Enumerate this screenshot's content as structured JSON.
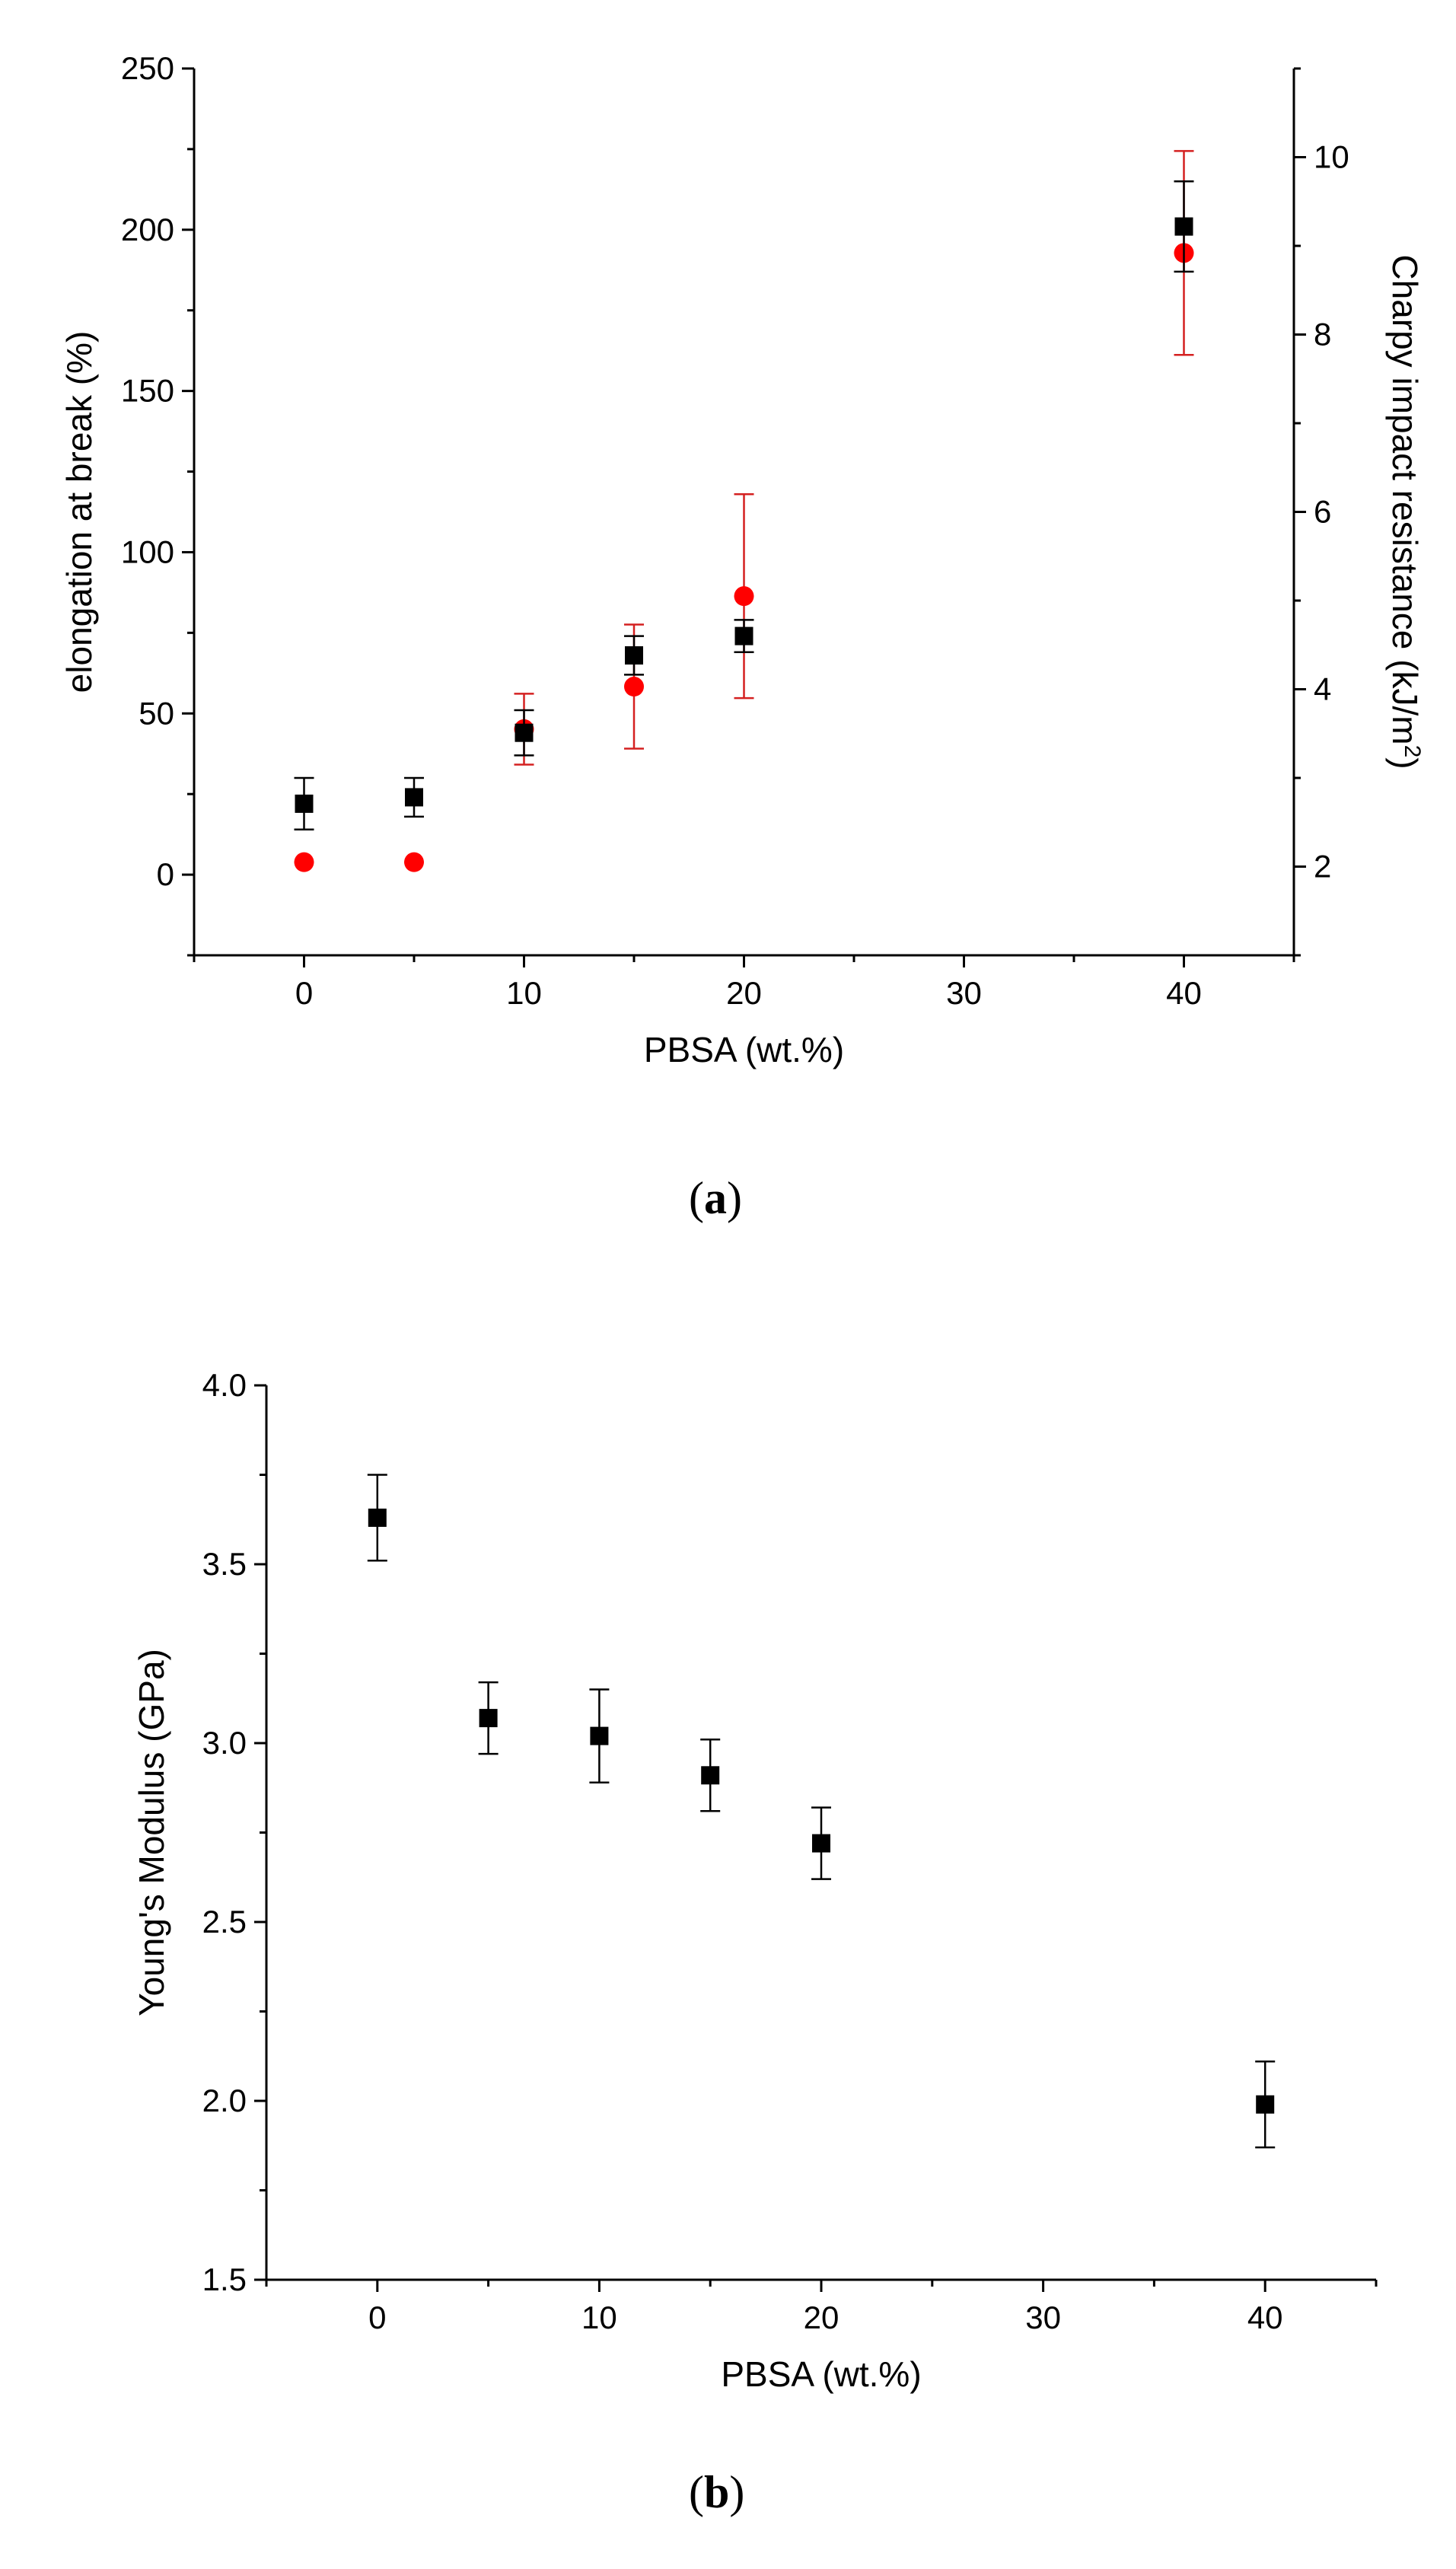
{
  "colors": {
    "series_black": "#000000",
    "series_red": "#ff0000",
    "errorbar_red": "#d42020",
    "axis": "#000000"
  },
  "chart_data": [
    {
      "panel": "a",
      "caption_label": "a",
      "type": "scatter",
      "xlabel": "PBSA (wt.%)",
      "ylabel": "elongation at break (%)",
      "y2label": "Charpy impact resistance (kJ/m",
      "y2label_sup": "2",
      "y2label_suffix": ")",
      "xlim": [
        -5,
        45
      ],
      "ylim": [
        -25,
        250
      ],
      "y2lim": [
        1,
        11
      ],
      "xticks": [
        0,
        10,
        20,
        30,
        40
      ],
      "yticks": [
        0,
        50,
        100,
        150,
        200,
        250
      ],
      "y2ticks": [
        2,
        4,
        6,
        8,
        10
      ],
      "series": [
        {
          "name": "elongation at break",
          "marker": "square",
          "axis": "left",
          "x": [
            0,
            5,
            10,
            15,
            20,
            40
          ],
          "y": [
            22,
            24,
            44,
            68,
            74,
            201
          ],
          "err": [
            8,
            6,
            7,
            6,
            5,
            14
          ]
        },
        {
          "name": "Charpy impact resistance",
          "marker": "circle",
          "axis": "right",
          "x": [
            0,
            5,
            10,
            15,
            20,
            40
          ],
          "y": [
            2.05,
            2.05,
            3.55,
            4.03,
            5.05,
            8.92
          ],
          "err": [
            0,
            0,
            0.4,
            0.7,
            1.15,
            1.15
          ]
        }
      ]
    },
    {
      "panel": "b",
      "caption_label": "b",
      "type": "scatter",
      "xlabel": "PBSA (wt.%)",
      "ylabel": "Young's Modulus (GPa)",
      "xlim": [
        -5,
        45
      ],
      "ylim": [
        1.5,
        4.0
      ],
      "xticks": [
        0,
        10,
        20,
        30,
        40
      ],
      "yticks": [
        "1.5",
        "2.0",
        "2.5",
        "3.0",
        "3.5",
        "4.0"
      ],
      "series": [
        {
          "name": "Young's Modulus",
          "marker": "square",
          "axis": "left",
          "x": [
            0,
            5,
            10,
            15,
            20,
            40
          ],
          "y": [
            3.63,
            3.07,
            3.02,
            2.91,
            2.72,
            1.99
          ],
          "err": [
            0.12,
            0.1,
            0.13,
            0.1,
            0.1,
            0.12
          ]
        }
      ]
    }
  ]
}
